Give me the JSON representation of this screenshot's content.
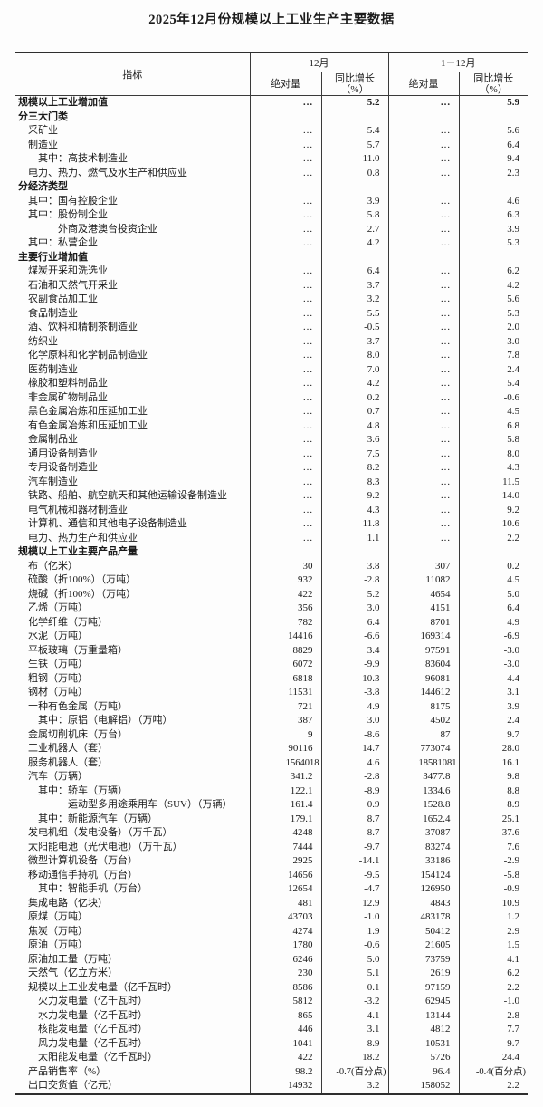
{
  "title": "2025年12月份规模以上工业生产主要数据",
  "table": {
    "indicator_header": "指标",
    "group_dec": "12月",
    "group_cum": "1－12月",
    "sub_abs": "绝对量",
    "sub_yoy": "同比增长",
    "sub_yoy_pct": "（%）",
    "ellipsis": "…",
    "rows": [
      {
        "label": "规模以上工业增加值",
        "indent": "s",
        "bold": true,
        "dec": "…",
        "dec_yoy": "5.2",
        "cum": "…",
        "cum_yoy": "5.9"
      },
      {
        "label": "分三大门类",
        "indent": "s",
        "bold": true,
        "dec": "",
        "dec_yoy": "",
        "cum": "",
        "cum_yoy": ""
      },
      {
        "label": "采矿业",
        "indent": "l1",
        "bold": false,
        "dec": "…",
        "dec_yoy": "5.4",
        "cum": "…",
        "cum_yoy": "5.6"
      },
      {
        "label": "制造业",
        "indent": "l1",
        "bold": false,
        "dec": "…",
        "dec_yoy": "5.7",
        "cum": "…",
        "cum_yoy": "6.4"
      },
      {
        "label": "其中：高技术制造业",
        "indent": "l2",
        "bold": false,
        "dec": "…",
        "dec_yoy": "11.0",
        "cum": "…",
        "cum_yoy": "9.4"
      },
      {
        "label": "电力、热力、燃气及水生产和供应业",
        "indent": "l1",
        "bold": false,
        "dec": "…",
        "dec_yoy": "0.8",
        "cum": "…",
        "cum_yoy": "2.3"
      },
      {
        "label": "分经济类型",
        "indent": "s",
        "bold": true,
        "dec": "",
        "dec_yoy": "",
        "cum": "",
        "cum_yoy": ""
      },
      {
        "label": "其中：国有控股企业",
        "indent": "l1",
        "bold": false,
        "dec": "…",
        "dec_yoy": "3.9",
        "cum": "…",
        "cum_yoy": "4.6"
      },
      {
        "label": "其中：股份制企业",
        "indent": "l1",
        "bold": false,
        "dec": "…",
        "dec_yoy": "5.8",
        "cum": "…",
        "cum_yoy": "6.3"
      },
      {
        "label": "外商及港澳台投资企业",
        "indent": "l2x",
        "bold": false,
        "dec": "…",
        "dec_yoy": "2.7",
        "cum": "…",
        "cum_yoy": "3.9"
      },
      {
        "label": "其中：私营企业",
        "indent": "l1",
        "bold": false,
        "dec": "…",
        "dec_yoy": "4.2",
        "cum": "…",
        "cum_yoy": "5.3"
      },
      {
        "label": "主要行业增加值",
        "indent": "s",
        "bold": true,
        "dec": "",
        "dec_yoy": "",
        "cum": "",
        "cum_yoy": ""
      },
      {
        "label": "煤炭开采和洗选业",
        "indent": "l1",
        "bold": false,
        "dec": "…",
        "dec_yoy": "6.4",
        "cum": "…",
        "cum_yoy": "6.2"
      },
      {
        "label": "石油和天然气开采业",
        "indent": "l1",
        "bold": false,
        "dec": "…",
        "dec_yoy": "3.7",
        "cum": "…",
        "cum_yoy": "4.2"
      },
      {
        "label": "农副食品加工业",
        "indent": "l1",
        "bold": false,
        "dec": "…",
        "dec_yoy": "3.2",
        "cum": "…",
        "cum_yoy": "5.6"
      },
      {
        "label": "食品制造业",
        "indent": "l1",
        "bold": false,
        "dec": "…",
        "dec_yoy": "5.5",
        "cum": "…",
        "cum_yoy": "5.3"
      },
      {
        "label": "酒、饮料和精制茶制造业",
        "indent": "l1",
        "bold": false,
        "dec": "…",
        "dec_yoy": "-0.5",
        "cum": "…",
        "cum_yoy": "2.0"
      },
      {
        "label": "纺织业",
        "indent": "l1",
        "bold": false,
        "dec": "…",
        "dec_yoy": "3.7",
        "cum": "…",
        "cum_yoy": "3.0"
      },
      {
        "label": "化学原料和化学制品制造业",
        "indent": "l1",
        "bold": false,
        "dec": "…",
        "dec_yoy": "8.0",
        "cum": "…",
        "cum_yoy": "7.8"
      },
      {
        "label": "医药制造业",
        "indent": "l1",
        "bold": false,
        "dec": "…",
        "dec_yoy": "7.0",
        "cum": "…",
        "cum_yoy": "2.4"
      },
      {
        "label": "橡胶和塑料制品业",
        "indent": "l1",
        "bold": false,
        "dec": "…",
        "dec_yoy": "4.2",
        "cum": "…",
        "cum_yoy": "5.4"
      },
      {
        "label": "非金属矿物制品业",
        "indent": "l1",
        "bold": false,
        "dec": "…",
        "dec_yoy": "0.2",
        "cum": "…",
        "cum_yoy": "-0.6"
      },
      {
        "label": "黑色金属冶炼和压延加工业",
        "indent": "l1",
        "bold": false,
        "dec": "…",
        "dec_yoy": "0.7",
        "cum": "…",
        "cum_yoy": "4.5"
      },
      {
        "label": "有色金属冶炼和压延加工业",
        "indent": "l1",
        "bold": false,
        "dec": "…",
        "dec_yoy": "4.8",
        "cum": "…",
        "cum_yoy": "6.8"
      },
      {
        "label": "金属制品业",
        "indent": "l1",
        "bold": false,
        "dec": "…",
        "dec_yoy": "3.6",
        "cum": "…",
        "cum_yoy": "5.8"
      },
      {
        "label": "通用设备制造业",
        "indent": "l1",
        "bold": false,
        "dec": "…",
        "dec_yoy": "7.5",
        "cum": "…",
        "cum_yoy": "8.0"
      },
      {
        "label": "专用设备制造业",
        "indent": "l1",
        "bold": false,
        "dec": "…",
        "dec_yoy": "8.2",
        "cum": "…",
        "cum_yoy": "4.3"
      },
      {
        "label": "汽车制造业",
        "indent": "l1",
        "bold": false,
        "dec": "…",
        "dec_yoy": "8.3",
        "cum": "…",
        "cum_yoy": "11.5"
      },
      {
        "label": "铁路、船舶、航空航天和其他运输设备制造业",
        "indent": "l1",
        "bold": false,
        "dec": "…",
        "dec_yoy": "9.2",
        "cum": "…",
        "cum_yoy": "14.0"
      },
      {
        "label": "电气机械和器材制造业",
        "indent": "l1",
        "bold": false,
        "dec": "…",
        "dec_yoy": "4.3",
        "cum": "…",
        "cum_yoy": "9.2"
      },
      {
        "label": "计算机、通信和其他电子设备制造业",
        "indent": "l1",
        "bold": false,
        "dec": "…",
        "dec_yoy": "11.8",
        "cum": "…",
        "cum_yoy": "10.6"
      },
      {
        "label": "电力、热力生产和供应业",
        "indent": "l1",
        "bold": false,
        "dec": "…",
        "dec_yoy": "1.1",
        "cum": "…",
        "cum_yoy": "2.2"
      },
      {
        "label": "规模以上工业主要产品产量",
        "indent": "s",
        "bold": true,
        "dec": "",
        "dec_yoy": "",
        "cum": "",
        "cum_yoy": ""
      },
      {
        "label": "布（亿米）",
        "indent": "l1",
        "bold": false,
        "dec": "30",
        "dec_yoy": "3.8",
        "cum": "307",
        "cum_yoy": "0.2"
      },
      {
        "label": "硫酸（折100%）（万吨）",
        "indent": "l1",
        "bold": false,
        "dec": "932",
        "dec_yoy": "-2.8",
        "cum": "11082",
        "cum_yoy": "4.5"
      },
      {
        "label": "烧碱（折100%）（万吨）",
        "indent": "l1",
        "bold": false,
        "dec": "422",
        "dec_yoy": "5.2",
        "cum": "4654",
        "cum_yoy": "5.0"
      },
      {
        "label": "乙烯（万吨）",
        "indent": "l1",
        "bold": false,
        "dec": "356",
        "dec_yoy": "3.0",
        "cum": "4151",
        "cum_yoy": "6.4"
      },
      {
        "label": "化学纤维（万吨）",
        "indent": "l1",
        "bold": false,
        "dec": "782",
        "dec_yoy": "6.4",
        "cum": "8701",
        "cum_yoy": "4.9"
      },
      {
        "label": "水泥（万吨）",
        "indent": "l1",
        "bold": false,
        "dec": "14416",
        "dec_yoy": "-6.6",
        "cum": "169314",
        "cum_yoy": "-6.9"
      },
      {
        "label": "平板玻璃（万重量箱）",
        "indent": "l1",
        "bold": false,
        "dec": "8829",
        "dec_yoy": "3.4",
        "cum": "97591",
        "cum_yoy": "-3.0"
      },
      {
        "label": "生铁（万吨）",
        "indent": "l1",
        "bold": false,
        "dec": "6072",
        "dec_yoy": "-9.9",
        "cum": "83604",
        "cum_yoy": "-3.0"
      },
      {
        "label": "粗钢（万吨）",
        "indent": "l1",
        "bold": false,
        "dec": "6818",
        "dec_yoy": "-10.3",
        "cum": "96081",
        "cum_yoy": "-4.4"
      },
      {
        "label": "钢材（万吨）",
        "indent": "l1",
        "bold": false,
        "dec": "11531",
        "dec_yoy": "-3.8",
        "cum": "144612",
        "cum_yoy": "3.1"
      },
      {
        "label": "十种有色金属（万吨）",
        "indent": "l1",
        "bold": false,
        "dec": "721",
        "dec_yoy": "4.9",
        "cum": "8175",
        "cum_yoy": "3.9"
      },
      {
        "label": "其中：原铝（电解铝）（万吨）",
        "indent": "l2",
        "bold": false,
        "dec": "387",
        "dec_yoy": "3.0",
        "cum": "4502",
        "cum_yoy": "2.4"
      },
      {
        "label": "金属切削机床（万台）",
        "indent": "l1",
        "bold": false,
        "dec": "9",
        "dec_yoy": "-8.6",
        "cum": "87",
        "cum_yoy": "9.7"
      },
      {
        "label": "工业机器人（套）",
        "indent": "l1",
        "bold": false,
        "dec": "90116",
        "dec_yoy": "14.7",
        "cum": "773074",
        "cum_yoy": "28.0"
      },
      {
        "label": "服务机器人（套）",
        "indent": "l1",
        "bold": false,
        "dec": "1564018",
        "dec_yoy": "4.6",
        "cum": "18581081",
        "cum_yoy": "16.1"
      },
      {
        "label": "汽车（万辆）",
        "indent": "l1",
        "bold": false,
        "dec": "341.2",
        "dec_yoy": "-2.8",
        "cum": "3477.8",
        "cum_yoy": "9.8"
      },
      {
        "label": "其中：轿车（万辆）",
        "indent": "l2",
        "bold": false,
        "dec": "122.1",
        "dec_yoy": "-8.9",
        "cum": "1334.6",
        "cum_yoy": "8.8"
      },
      {
        "label": "运动型多用途乘用车（SUV）（万辆）",
        "indent": "l3x",
        "bold": false,
        "dec": "161.4",
        "dec_yoy": "0.9",
        "cum": "1528.8",
        "cum_yoy": "8.9"
      },
      {
        "label": "其中：新能源汽车（万辆）",
        "indent": "l2",
        "bold": false,
        "dec": "179.1",
        "dec_yoy": "8.7",
        "cum": "1652.4",
        "cum_yoy": "25.1"
      },
      {
        "label": "发电机组（发电设备）（万千瓦）",
        "indent": "l1",
        "bold": false,
        "dec": "4248",
        "dec_yoy": "8.7",
        "cum": "37087",
        "cum_yoy": "37.6"
      },
      {
        "label": "太阳能电池（光伏电池）（万千瓦）",
        "indent": "l1",
        "bold": false,
        "dec": "7444",
        "dec_yoy": "-9.7",
        "cum": "83274",
        "cum_yoy": "7.6"
      },
      {
        "label": "微型计算机设备（万台）",
        "indent": "l1",
        "bold": false,
        "dec": "2925",
        "dec_yoy": "-14.1",
        "cum": "33186",
        "cum_yoy": "-2.9"
      },
      {
        "label": "移动通信手持机（万台）",
        "indent": "l1",
        "bold": false,
        "dec": "14656",
        "dec_yoy": "-9.5",
        "cum": "154124",
        "cum_yoy": "-5.8"
      },
      {
        "label": "其中：智能手机（万台）",
        "indent": "l2",
        "bold": false,
        "dec": "12654",
        "dec_yoy": "-4.7",
        "cum": "126950",
        "cum_yoy": "-0.9"
      },
      {
        "label": "集成电路（亿块）",
        "indent": "l1",
        "bold": false,
        "dec": "481",
        "dec_yoy": "12.9",
        "cum": "4843",
        "cum_yoy": "10.9"
      },
      {
        "label": "原煤（万吨）",
        "indent": "l1",
        "bold": false,
        "dec": "43703",
        "dec_yoy": "-1.0",
        "cum": "483178",
        "cum_yoy": "1.2"
      },
      {
        "label": "焦炭（万吨）",
        "indent": "l1",
        "bold": false,
        "dec": "4274",
        "dec_yoy": "1.9",
        "cum": "50412",
        "cum_yoy": "2.9"
      },
      {
        "label": "原油（万吨）",
        "indent": "l1",
        "bold": false,
        "dec": "1780",
        "dec_yoy": "-0.6",
        "cum": "21605",
        "cum_yoy": "1.5"
      },
      {
        "label": "原油加工量（万吨）",
        "indent": "l1",
        "bold": false,
        "dec": "6246",
        "dec_yoy": "5.0",
        "cum": "73759",
        "cum_yoy": "4.1"
      },
      {
        "label": "天然气（亿立方米）",
        "indent": "l1",
        "bold": false,
        "dec": "230",
        "dec_yoy": "5.1",
        "cum": "2619",
        "cum_yoy": "6.2"
      },
      {
        "label": "规模以上工业发电量（亿千瓦时）",
        "indent": "l1",
        "bold": false,
        "dec": "8586",
        "dec_yoy": "0.1",
        "cum": "97159",
        "cum_yoy": "2.2"
      },
      {
        "label": "火力发电量（亿千瓦时）",
        "indent": "l2",
        "bold": false,
        "dec": "5812",
        "dec_yoy": "-3.2",
        "cum": "62945",
        "cum_yoy": "-1.0"
      },
      {
        "label": "水力发电量（亿千瓦时）",
        "indent": "l2",
        "bold": false,
        "dec": "865",
        "dec_yoy": "4.1",
        "cum": "13144",
        "cum_yoy": "2.8"
      },
      {
        "label": "核能发电量（亿千瓦时）",
        "indent": "l2",
        "bold": false,
        "dec": "446",
        "dec_yoy": "3.1",
        "cum": "4812",
        "cum_yoy": "7.7"
      },
      {
        "label": "风力发电量（亿千瓦时）",
        "indent": "l2",
        "bold": false,
        "dec": "1041",
        "dec_yoy": "8.9",
        "cum": "10531",
        "cum_yoy": "9.7"
      },
      {
        "label": "太阳能发电量（亿千瓦时）",
        "indent": "l2",
        "bold": false,
        "dec": "422",
        "dec_yoy": "18.2",
        "cum": "5726",
        "cum_yoy": "24.4"
      },
      {
        "label": "产品销售率（%）",
        "indent": "l1",
        "bold": false,
        "dec": "98.2",
        "dec_yoy": "-0.7(百分点)",
        "cum": "96.4",
        "cum_yoy": "-0.4(百分点)"
      },
      {
        "label": "出口交货值（亿元）",
        "indent": "l1",
        "bold": false,
        "dec": "14932",
        "dec_yoy": "3.2",
        "cum": "158052",
        "cum_yoy": "2.2"
      }
    ]
  }
}
